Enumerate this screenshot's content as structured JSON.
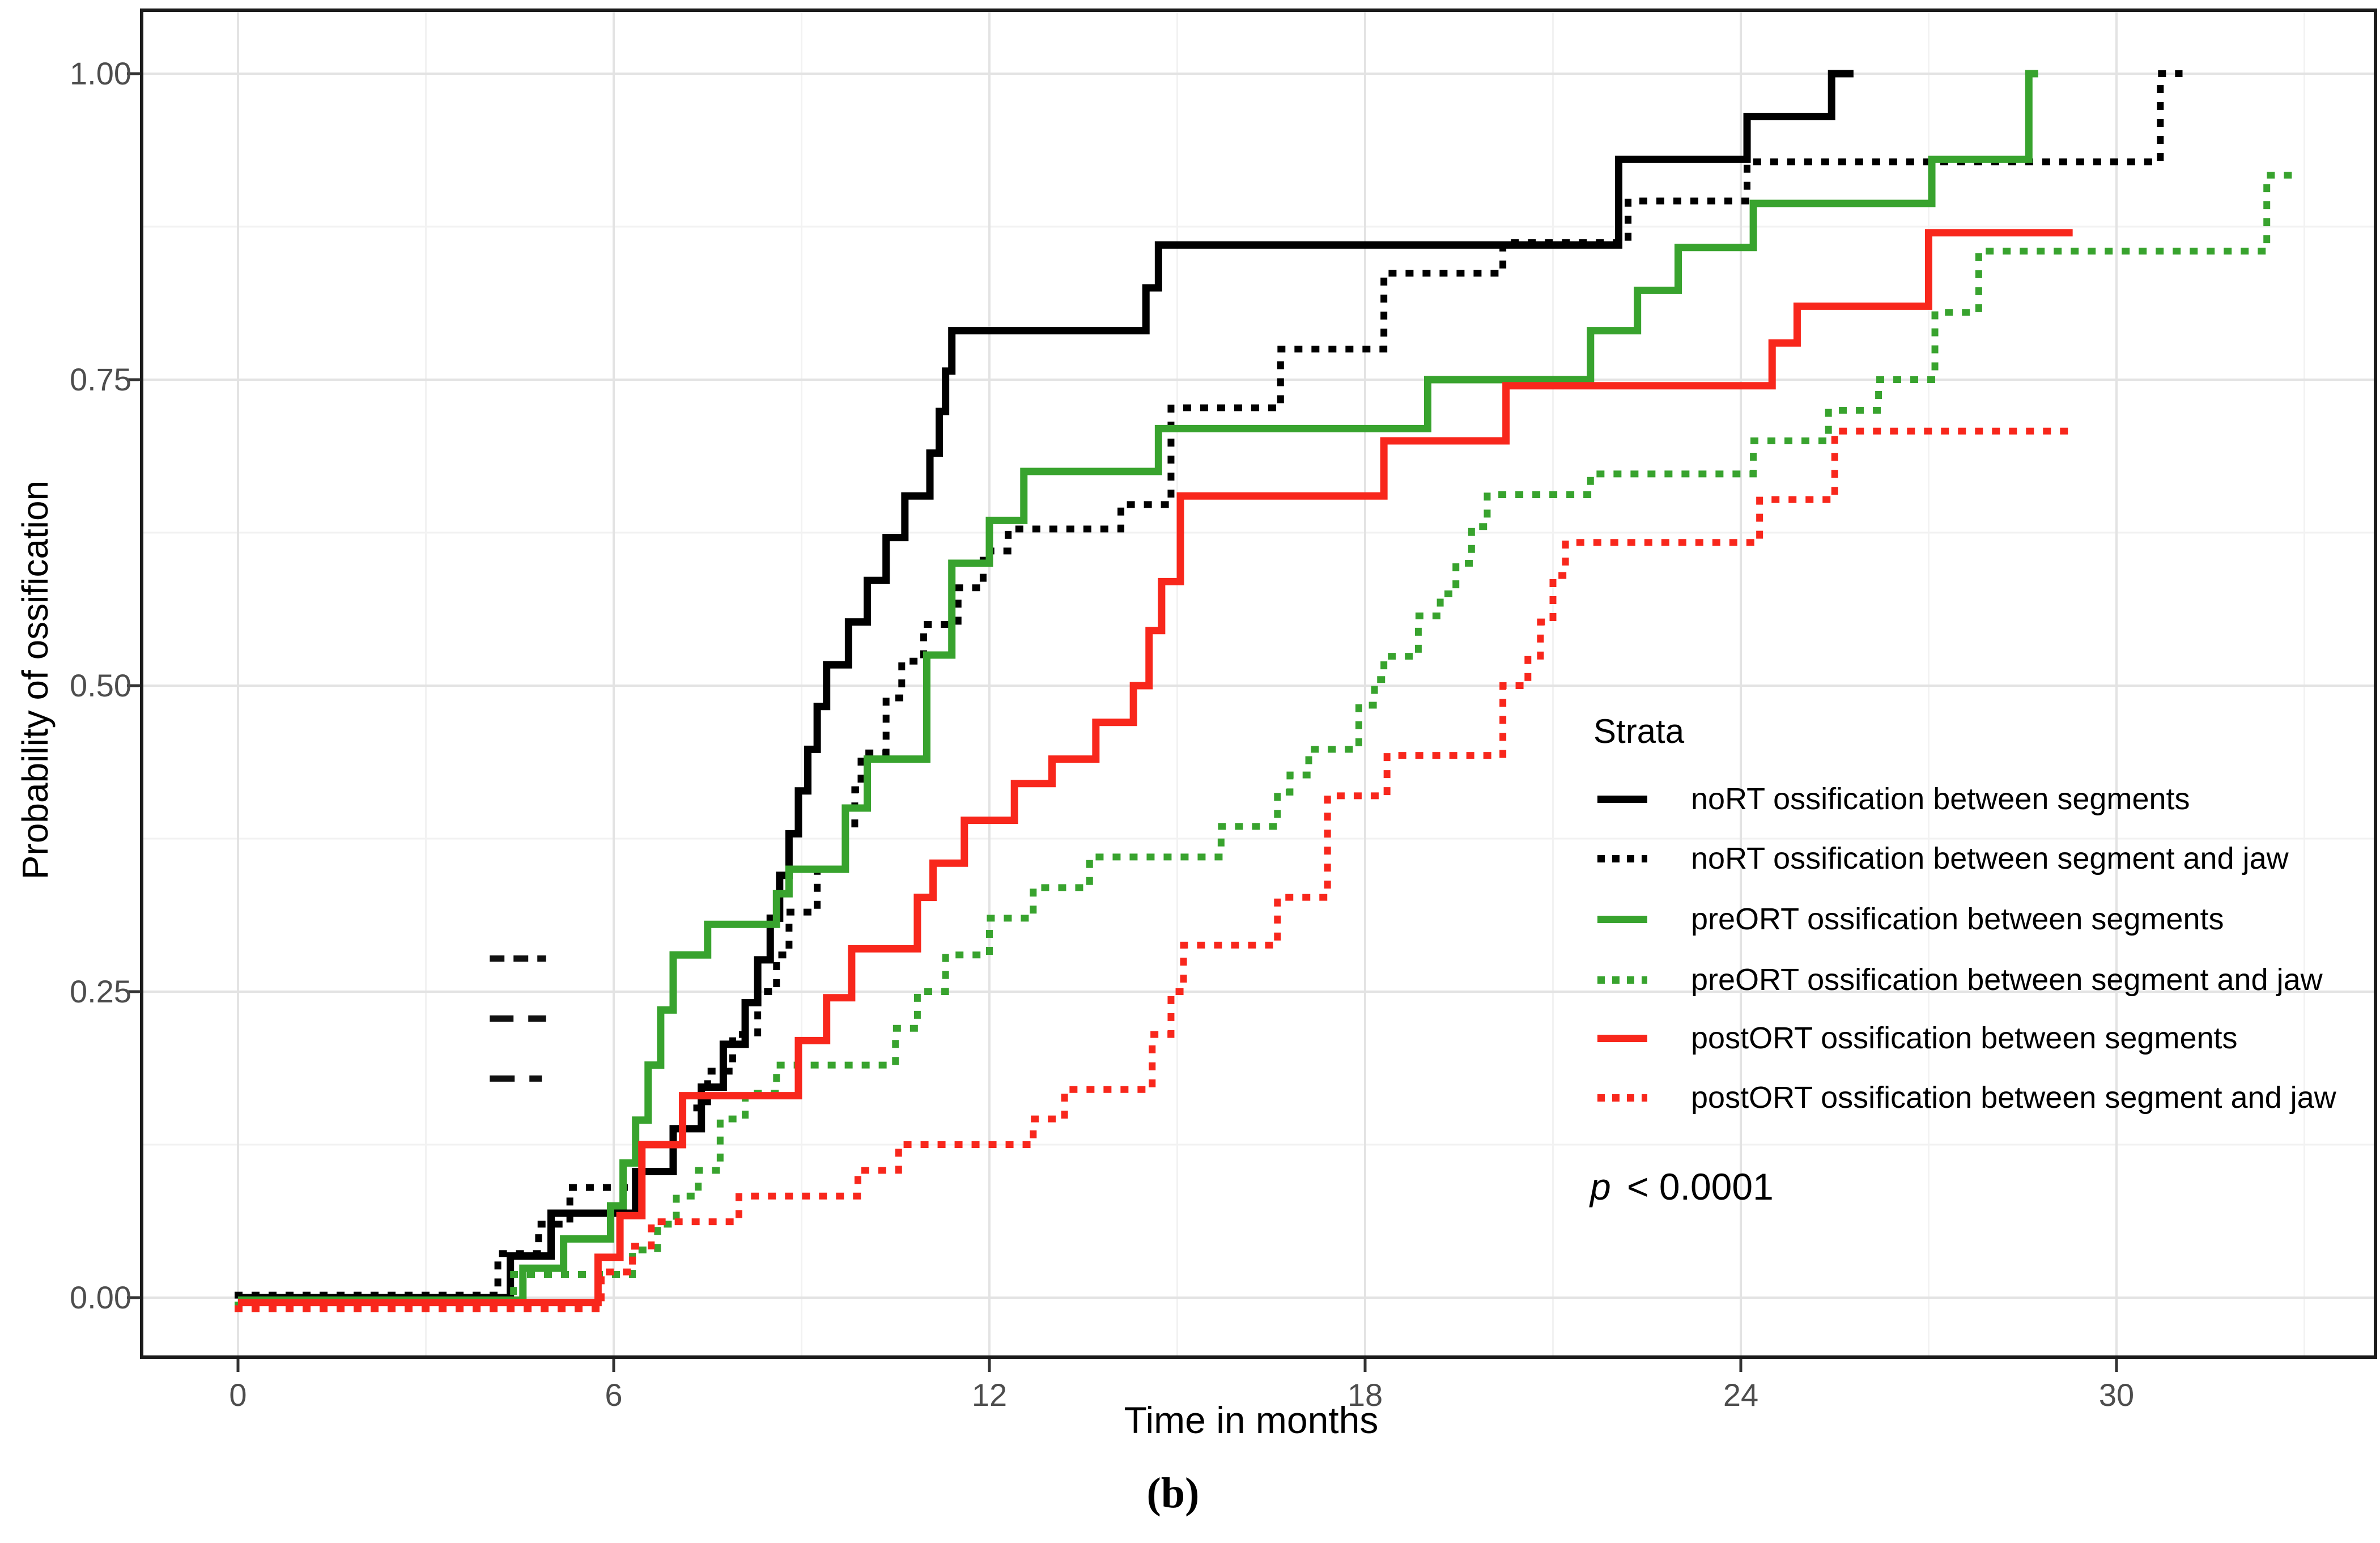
{
  "figure": {
    "caption": "(b)"
  },
  "chart_data": {
    "type": "line",
    "subtype": "kaplan-meier-step",
    "title": "",
    "xlabel": "Time in months",
    "ylabel": "Probability of ossification",
    "x_ticks": [
      0,
      6,
      12,
      18,
      24,
      30
    ],
    "x_tick_labels": [
      "0",
      "6",
      "12",
      "18",
      "24",
      "30"
    ],
    "y_ticks": [
      0.0,
      0.25,
      0.5,
      0.75,
      1.0
    ],
    "y_tick_labels": [
      "0.00",
      "0.25",
      "0.50",
      "0.75",
      "1.00"
    ],
    "x_minor_ticks": [
      3,
      9,
      15,
      21,
      27,
      33
    ],
    "y_minor_ticks": [
      0.125,
      0.375,
      0.625,
      0.875
    ],
    "xlim": [
      -1.54,
      34.1
    ],
    "ylim": [
      -0.049,
      1.052
    ],
    "grid": true,
    "legend": {
      "title": "Strata",
      "position": "inside-right"
    },
    "pvalue_italic": "p",
    "pvalue_rest": " < 0.0001",
    "colors": {
      "noRT": "#000000",
      "preORT": "#38a32e",
      "postORT": "#f8271c",
      "grid_major": "#e3e3e3",
      "grid_minor": "#f2f2f2",
      "panel_border": "#1b1b1b",
      "axis_text": "#4d4d4d"
    },
    "series": [
      {
        "name": "noRT ossification between segments",
        "color": "#000000",
        "dash": "solid",
        "end": 25.8,
        "y0": 0,
        "points": [
          [
            4.35,
            0.034
          ],
          [
            5.0,
            0.069
          ],
          [
            6.35,
            0.103
          ],
          [
            6.95,
            0.138
          ],
          [
            7.4,
            0.172
          ],
          [
            7.75,
            0.207
          ],
          [
            8.1,
            0.241
          ],
          [
            8.3,
            0.276
          ],
          [
            8.5,
            0.31
          ],
          [
            8.65,
            0.345
          ],
          [
            8.8,
            0.379
          ],
          [
            8.95,
            0.414
          ],
          [
            9.1,
            0.448
          ],
          [
            9.25,
            0.483
          ],
          [
            9.4,
            0.517
          ],
          [
            9.75,
            0.552
          ],
          [
            10.05,
            0.586
          ],
          [
            10.35,
            0.621
          ],
          [
            10.65,
            0.655
          ],
          [
            11.05,
            0.69
          ],
          [
            11.2,
            0.724
          ],
          [
            11.3,
            0.757
          ],
          [
            11.4,
            0.79
          ],
          [
            14.5,
            0.825
          ],
          [
            14.7,
            0.86
          ],
          [
            22.05,
            0.93
          ],
          [
            24.1,
            0.965
          ],
          [
            25.45,
            1.0
          ]
        ]
      },
      {
        "name": "noRT ossification between segment and jaw",
        "color": "#000000",
        "dash": "dotted",
        "end": 31.0,
        "y0": 0.002,
        "points": [
          [
            4.15,
            0.036
          ],
          [
            4.8,
            0.06
          ],
          [
            5.3,
            0.09
          ],
          [
            6.45,
            0.125
          ],
          [
            7.1,
            0.155
          ],
          [
            7.5,
            0.185
          ],
          [
            7.9,
            0.215
          ],
          [
            8.3,
            0.25
          ],
          [
            8.6,
            0.28
          ],
          [
            8.8,
            0.315
          ],
          [
            9.25,
            0.35
          ],
          [
            9.7,
            0.385
          ],
          [
            9.85,
            0.415
          ],
          [
            9.95,
            0.445
          ],
          [
            10.35,
            0.49
          ],
          [
            10.6,
            0.52
          ],
          [
            10.95,
            0.55
          ],
          [
            11.5,
            0.58
          ],
          [
            11.9,
            0.61
          ],
          [
            12.3,
            0.628
          ],
          [
            14.1,
            0.648
          ],
          [
            14.9,
            0.727
          ],
          [
            16.65,
            0.775
          ],
          [
            18.3,
            0.837
          ],
          [
            20.2,
            0.862
          ],
          [
            22.2,
            0.896
          ],
          [
            24.1,
            0.928
          ],
          [
            30.7,
            1.0
          ]
        ]
      },
      {
        "name": "preORT ossification between segments",
        "color": "#38a32e",
        "dash": "solid",
        "end": 28.75,
        "y0": -0.002,
        "points": [
          [
            4.55,
            0.024
          ],
          [
            5.2,
            0.048
          ],
          [
            5.95,
            0.075
          ],
          [
            6.15,
            0.11
          ],
          [
            6.35,
            0.145
          ],
          [
            6.55,
            0.19
          ],
          [
            6.75,
            0.235
          ],
          [
            6.95,
            0.28
          ],
          [
            7.5,
            0.305
          ],
          [
            8.6,
            0.33
          ],
          [
            8.8,
            0.35
          ],
          [
            9.7,
            0.4
          ],
          [
            10.05,
            0.44
          ],
          [
            11.0,
            0.525
          ],
          [
            11.4,
            0.6
          ],
          [
            12.0,
            0.635
          ],
          [
            12.55,
            0.675
          ],
          [
            14.7,
            0.71
          ],
          [
            19.0,
            0.75
          ],
          [
            21.6,
            0.79
          ],
          [
            22.35,
            0.823
          ],
          [
            23.0,
            0.858
          ],
          [
            24.2,
            0.894
          ],
          [
            27.05,
            0.93
          ],
          [
            28.6,
            1.0
          ]
        ]
      },
      {
        "name": "preORT ossification between segment and jaw",
        "color": "#38a32e",
        "dash": "dotted",
        "end": 32.75,
        "y0": -0.006,
        "points": [
          [
            4.4,
            0.019
          ],
          [
            6.3,
            0.039
          ],
          [
            6.7,
            0.06
          ],
          [
            7.0,
            0.083
          ],
          [
            7.35,
            0.104
          ],
          [
            7.7,
            0.146
          ],
          [
            8.1,
            0.167
          ],
          [
            8.6,
            0.19
          ],
          [
            10.5,
            0.22
          ],
          [
            10.85,
            0.25
          ],
          [
            11.3,
            0.28
          ],
          [
            12.0,
            0.31
          ],
          [
            12.7,
            0.335
          ],
          [
            13.6,
            0.36
          ],
          [
            15.7,
            0.385
          ],
          [
            16.6,
            0.413
          ],
          [
            16.8,
            0.427
          ],
          [
            17.1,
            0.448
          ],
          [
            17.9,
            0.484
          ],
          [
            18.15,
            0.505
          ],
          [
            18.3,
            0.524
          ],
          [
            18.85,
            0.557
          ],
          [
            19.2,
            0.575
          ],
          [
            19.45,
            0.6
          ],
          [
            19.7,
            0.63
          ],
          [
            19.95,
            0.656
          ],
          [
            21.6,
            0.673
          ],
          [
            24.2,
            0.7
          ],
          [
            25.4,
            0.725
          ],
          [
            26.2,
            0.75
          ],
          [
            27.1,
            0.805
          ],
          [
            27.8,
            0.855
          ],
          [
            32.4,
            0.917
          ]
        ]
      },
      {
        "name": "postORT ossification between segments",
        "color": "#f8271c",
        "dash": "solid",
        "end": 29.3,
        "y0": -0.004,
        "points": [
          [
            5.75,
            0.033
          ],
          [
            6.1,
            0.067
          ],
          [
            6.45,
            0.125
          ],
          [
            7.1,
            0.165
          ],
          [
            8.95,
            0.21
          ],
          [
            9.4,
            0.245
          ],
          [
            9.8,
            0.285
          ],
          [
            10.85,
            0.327
          ],
          [
            11.1,
            0.355
          ],
          [
            11.6,
            0.39
          ],
          [
            12.4,
            0.42
          ],
          [
            13.0,
            0.44
          ],
          [
            13.7,
            0.47
          ],
          [
            14.3,
            0.5
          ],
          [
            14.55,
            0.545
          ],
          [
            14.75,
            0.585
          ],
          [
            15.05,
            0.655
          ],
          [
            18.3,
            0.7
          ],
          [
            20.25,
            0.745
          ],
          [
            24.5,
            0.78
          ],
          [
            24.9,
            0.81
          ],
          [
            27.0,
            0.87
          ]
        ]
      },
      {
        "name": "postORT ossification between segment and jaw",
        "color": "#f8271c",
        "dash": "dotted",
        "end": 29.3,
        "y0": -0.009,
        "points": [
          [
            5.8,
            0.021
          ],
          [
            6.3,
            0.042
          ],
          [
            6.6,
            0.062
          ],
          [
            8.0,
            0.083
          ],
          [
            9.9,
            0.104
          ],
          [
            10.55,
            0.125
          ],
          [
            12.7,
            0.146
          ],
          [
            13.2,
            0.17
          ],
          [
            14.6,
            0.215
          ],
          [
            14.9,
            0.25
          ],
          [
            15.1,
            0.288
          ],
          [
            16.6,
            0.327
          ],
          [
            17.4,
            0.41
          ],
          [
            18.35,
            0.443
          ],
          [
            20.2,
            0.5
          ],
          [
            20.6,
            0.524
          ],
          [
            20.8,
            0.552
          ],
          [
            21.0,
            0.59
          ],
          [
            21.2,
            0.617
          ],
          [
            24.3,
            0.652
          ],
          [
            25.5,
            0.708
          ]
        ]
      }
    ],
    "annotation_dashes": [
      {
        "y": 0.277,
        "x1": 4.02,
        "x2": 4.92,
        "pattern": "26 16"
      },
      {
        "y": 0.228,
        "x1": 4.02,
        "x2": 4.92,
        "pattern": "42 26"
      },
      {
        "y": 0.179,
        "x1": 4.02,
        "x2": 4.92,
        "pattern": "44 26 22 120"
      }
    ]
  }
}
